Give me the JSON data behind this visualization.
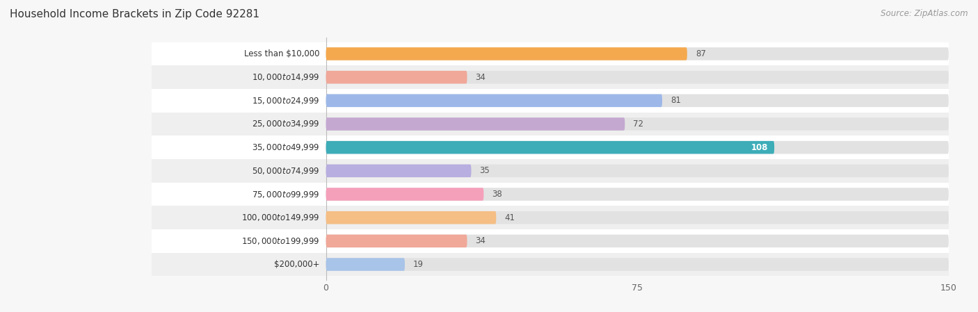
{
  "title": "Household Income Brackets in Zip Code 92281",
  "source": "Source: ZipAtlas.com",
  "categories": [
    "Less than $10,000",
    "$10,000 to $14,999",
    "$15,000 to $24,999",
    "$25,000 to $34,999",
    "$35,000 to $49,999",
    "$50,000 to $74,999",
    "$75,000 to $99,999",
    "$100,000 to $149,999",
    "$150,000 to $199,999",
    "$200,000+"
  ],
  "values": [
    87,
    34,
    81,
    72,
    108,
    35,
    38,
    41,
    34,
    19
  ],
  "colors": [
    "#F5A94E",
    "#F0A899",
    "#9DB8E8",
    "#C4A8D0",
    "#3DADB8",
    "#B8AEE0",
    "#F5A0BB",
    "#F5BE84",
    "#F0A899",
    "#A8C4E8"
  ],
  "xlim": [
    0,
    150
  ],
  "xticks": [
    0,
    75,
    150
  ],
  "bar_height": 0.55,
  "background_color": "#f7f7f7",
  "row_colors": [
    "#ffffff",
    "#efefef"
  ],
  "bar_bg_color": "#e2e2e2",
  "title_fontsize": 11,
  "label_fontsize": 8.5,
  "value_fontsize": 8.5,
  "source_fontsize": 8.5
}
